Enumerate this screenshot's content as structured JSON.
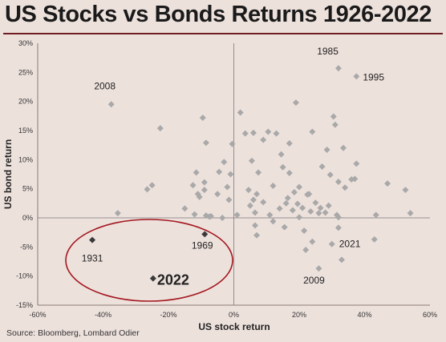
{
  "header": {
    "title": "US Stocks vs Bonds Returns 1926-2022"
  },
  "footer": {
    "source": "Source: Bloomberg, Lombard Odier"
  },
  "chart_data": {
    "type": "scatter",
    "title": "US Stocks vs Bonds Returns 1926-2022",
    "xlabel": "US stock return",
    "ylabel": "US bond return",
    "xlim": [
      -60,
      60
    ],
    "ylim": [
      -15,
      30
    ],
    "x_ticks": [
      "-60%",
      "-40%",
      "-20%",
      "0%",
      "20%",
      "40%",
      "60%"
    ],
    "y_ticks": [
      "-15%",
      "-10%",
      "-5%",
      "0%",
      "5%",
      "10%",
      "15%",
      "20%",
      "25%",
      "30%"
    ],
    "colors": {
      "points": "#a9a9a9",
      "highlight": "#3a3a3a",
      "ellipse": "#a3171f"
    },
    "points": [
      {
        "x": -37.5,
        "y": 19.5,
        "label": "2008"
      },
      {
        "x": 32,
        "y": 25.7,
        "label": "1985"
      },
      {
        "x": 37.5,
        "y": 24.3,
        "label": "1995"
      },
      {
        "x": 30,
        "y": -4.5,
        "label": "2021"
      },
      {
        "x": 26,
        "y": -8.7,
        "label": "2009"
      },
      {
        "x": -35.5,
        "y": 0.8
      },
      {
        "x": -26.5,
        "y": 4.9
      },
      {
        "x": -25,
        "y": 5.6
      },
      {
        "x": -22.5,
        "y": 15.4
      },
      {
        "x": -15,
        "y": 1.6
      },
      {
        "x": -12.5,
        "y": 5.6
      },
      {
        "x": -12,
        "y": 0.6
      },
      {
        "x": -11.5,
        "y": 7.8
      },
      {
        "x": -11,
        "y": 4.1
      },
      {
        "x": -10.5,
        "y": 3.6
      },
      {
        "x": -9.5,
        "y": 17.2
      },
      {
        "x": -9,
        "y": 6.1
      },
      {
        "x": -9,
        "y": 4.8
      },
      {
        "x": -8.5,
        "y": 12.9
      },
      {
        "x": -8.5,
        "y": 0.4
      },
      {
        "x": -7.5,
        "y": 0.2
      },
      {
        "x": -7,
        "y": 0.3
      },
      {
        "x": -5,
        "y": 4.1
      },
      {
        "x": -4.5,
        "y": 7.9
      },
      {
        "x": -3.5,
        "y": 0.0
      },
      {
        "x": -3,
        "y": 9.6
      },
      {
        "x": -2,
        "y": 5.3
      },
      {
        "x": -1.5,
        "y": 3.1
      },
      {
        "x": -1,
        "y": 7.5
      },
      {
        "x": -0.5,
        "y": 12.7
      },
      {
        "x": 1,
        "y": 0.5
      },
      {
        "x": 2,
        "y": 18.1
      },
      {
        "x": 3.5,
        "y": 14.5
      },
      {
        "x": 4.5,
        "y": 4.8
      },
      {
        "x": 5,
        "y": 2.1
      },
      {
        "x": 5.5,
        "y": 9.8
      },
      {
        "x": 6,
        "y": 14.6
      },
      {
        "x": 6,
        "y": 3.1
      },
      {
        "x": 6.5,
        "y": 0.9
      },
      {
        "x": 6.5,
        "y": -1.3
      },
      {
        "x": 7,
        "y": 4.1
      },
      {
        "x": 7,
        "y": -3.0
      },
      {
        "x": 7.5,
        "y": 7.8
      },
      {
        "x": 9,
        "y": 13.4
      },
      {
        "x": 9,
        "y": 2.7
      },
      {
        "x": 10.5,
        "y": 14.8
      },
      {
        "x": 11,
        "y": 0.5
      },
      {
        "x": 12,
        "y": 5.5
      },
      {
        "x": 12,
        "y": -0.6
      },
      {
        "x": 13,
        "y": 14.5
      },
      {
        "x": 14,
        "y": 1.6
      },
      {
        "x": 14.5,
        "y": 10.9
      },
      {
        "x": 15,
        "y": 8.7
      },
      {
        "x": 15.5,
        "y": -1.6
      },
      {
        "x": 16,
        "y": 2.5
      },
      {
        "x": 16.5,
        "y": 3.4
      },
      {
        "x": 17,
        "y": 7.7
      },
      {
        "x": 17,
        "y": 12.8
      },
      {
        "x": 18,
        "y": 1.3
      },
      {
        "x": 18.5,
        "y": 4.4
      },
      {
        "x": 19,
        "y": 19.8
      },
      {
        "x": 19.5,
        "y": 2.4
      },
      {
        "x": 20,
        "y": 0.1
      },
      {
        "x": 20,
        "y": 5.3
      },
      {
        "x": 21,
        "y": 1.7
      },
      {
        "x": 21.5,
        "y": -2.2
      },
      {
        "x": 22,
        "y": -5.5
      },
      {
        "x": 22.5,
        "y": 4.0
      },
      {
        "x": 23,
        "y": 4.1
      },
      {
        "x": 23.5,
        "y": 1.1
      },
      {
        "x": 24,
        "y": 14.8
      },
      {
        "x": 24,
        "y": -4.1
      },
      {
        "x": 25,
        "y": 2.6
      },
      {
        "x": 26,
        "y": 0.8
      },
      {
        "x": 26.5,
        "y": 1.7
      },
      {
        "x": 27,
        "y": 8.8
      },
      {
        "x": 28,
        "y": 0.9
      },
      {
        "x": 28.5,
        "y": 11.7
      },
      {
        "x": 29,
        "y": 2.1
      },
      {
        "x": 29.5,
        "y": 7.4
      },
      {
        "x": 30.5,
        "y": 17.4
      },
      {
        "x": 31,
        "y": 16.0
      },
      {
        "x": 31.5,
        "y": 0.5
      },
      {
        "x": 32,
        "y": -1.7
      },
      {
        "x": 32,
        "y": 0.1
      },
      {
        "x": 32,
        "y": 6.2
      },
      {
        "x": 33,
        "y": -7.2
      },
      {
        "x": 33.5,
        "y": 12.0
      },
      {
        "x": 34,
        "y": 5.2
      },
      {
        "x": 36,
        "y": 6.6
      },
      {
        "x": 37,
        "y": 6.7
      },
      {
        "x": 37.5,
        "y": 9.3
      },
      {
        "x": 43,
        "y": -3.7
      },
      {
        "x": 43.5,
        "y": 0.5
      },
      {
        "x": 47,
        "y": 5.9
      },
      {
        "x": 52.5,
        "y": 4.8
      },
      {
        "x": 54,
        "y": 0.8
      }
    ],
    "highlights": [
      {
        "x": -43.3,
        "y": -3.8,
        "label": "1931"
      },
      {
        "x": -8.9,
        "y": -2.8,
        "label": "1969"
      },
      {
        "x": -24.7,
        "y": -10.4,
        "label": "2022"
      }
    ]
  }
}
